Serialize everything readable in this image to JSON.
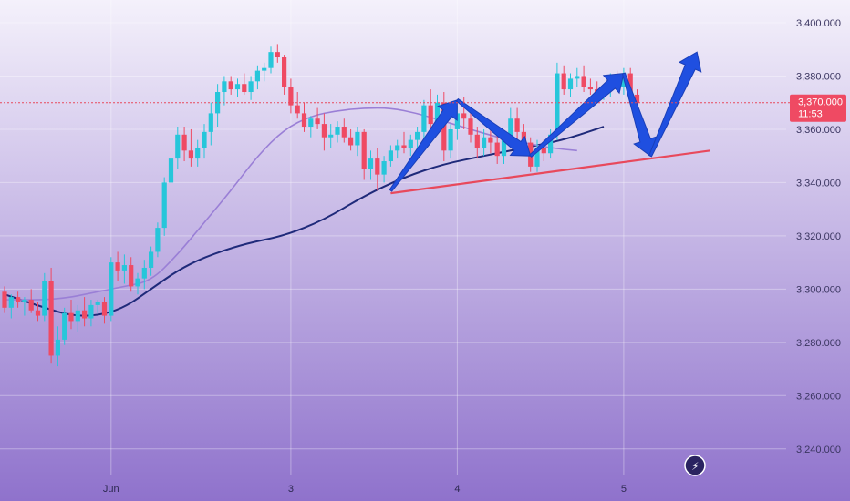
{
  "colors": {
    "bg_top": "#f4f1fb",
    "bg_bottom": "#8f72cc",
    "up": "#26c6da",
    "down": "#ef4a63",
    "ma_dark": "#1f2a7a",
    "ma_light": "#9a7fd6",
    "trendline": "#e8495c",
    "arrow": "#1f4fe0",
    "price_line": "#e8495c",
    "price_tag_bg": "#ef4a63"
  },
  "header": {
    "watermark_text": ""
  },
  "price_tag": {
    "price": "3,370.000",
    "countdown": "11:53"
  },
  "chart_data": {
    "type": "candlestick",
    "title": "",
    "xlabel": "",
    "ylabel": "",
    "ylim": [
      3230,
      3400
    ],
    "yticks": [
      3240,
      3260,
      3280,
      3300,
      3320,
      3340,
      3360,
      3380,
      3400
    ],
    "ytick_labels": [
      "3,240.000",
      "3,260.000",
      "3,280.000",
      "3,300.000",
      "3,320.000",
      "3,340.000",
      "3,360.000",
      "3,380.000",
      "3,400.000"
    ],
    "xticks": [
      {
        "label": "Jun",
        "index": 16
      },
      {
        "label": "3",
        "index": 43
      },
      {
        "label": "4",
        "index": 68
      },
      {
        "label": "5",
        "index": 93
      }
    ],
    "grid": true,
    "current_price": 3370,
    "candles": [
      [
        3299,
        3301,
        3291,
        3293
      ],
      [
        3293,
        3298,
        3289,
        3297
      ],
      [
        3297,
        3299,
        3293,
        3295
      ],
      [
        3295,
        3297,
        3290,
        3296
      ],
      [
        3296,
        3300,
        3291,
        3292
      ],
      [
        3292,
        3295,
        3288,
        3290
      ],
      [
        3290,
        3306,
        3288,
        3303
      ],
      [
        3303,
        3308,
        3272,
        3275
      ],
      [
        3275,
        3286,
        3271,
        3281
      ],
      [
        3281,
        3293,
        3279,
        3291
      ],
      [
        3291,
        3296,
        3285,
        3288
      ],
      [
        3288,
        3294,
        3284,
        3292
      ],
      [
        3292,
        3297,
        3286,
        3289
      ],
      [
        3289,
        3296,
        3286,
        3294
      ],
      [
        3294,
        3296,
        3291,
        3295
      ],
      [
        3295,
        3297,
        3287,
        3290
      ],
      [
        3290,
        3312,
        3288,
        3310
      ],
      [
        3310,
        3314,
        3303,
        3307
      ],
      [
        3307,
        3313,
        3302,
        3309
      ],
      [
        3309,
        3312,
        3299,
        3301
      ],
      [
        3301,
        3306,
        3298,
        3304
      ],
      [
        3304,
        3311,
        3300,
        3308
      ],
      [
        3308,
        3316,
        3305,
        3314
      ],
      [
        3314,
        3325,
        3312,
        3323
      ],
      [
        3323,
        3342,
        3320,
        3340
      ],
      [
        3340,
        3352,
        3334,
        3349
      ],
      [
        3349,
        3361,
        3345,
        3358
      ],
      [
        3358,
        3361,
        3348,
        3352
      ],
      [
        3352,
        3360,
        3346,
        3349
      ],
      [
        3349,
        3356,
        3346,
        3353
      ],
      [
        3353,
        3362,
        3349,
        3359
      ],
      [
        3359,
        3370,
        3354,
        3366
      ],
      [
        3366,
        3377,
        3361,
        3374
      ],
      [
        3374,
        3380,
        3369,
        3378
      ],
      [
        3378,
        3380,
        3373,
        3375
      ],
      [
        3375,
        3379,
        3372,
        3377
      ],
      [
        3377,
        3381,
        3373,
        3374
      ],
      [
        3374,
        3380,
        3371,
        3378
      ],
      [
        3378,
        3384,
        3375,
        3382
      ],
      [
        3382,
        3385,
        3378,
        3383
      ],
      [
        3383,
        3391,
        3381,
        3389
      ],
      [
        3389,
        3392,
        3385,
        3387
      ],
      [
        3387,
        3388,
        3373,
        3376
      ],
      [
        3376,
        3379,
        3366,
        3369
      ],
      [
        3369,
        3374,
        3364,
        3366
      ],
      [
        3366,
        3370,
        3359,
        3361
      ],
      [
        3361,
        3365,
        3357,
        3364
      ],
      [
        3364,
        3368,
        3360,
        3362
      ],
      [
        3362,
        3366,
        3352,
        3357
      ],
      [
        3357,
        3362,
        3353,
        3358
      ],
      [
        3358,
        3363,
        3355,
        3361
      ],
      [
        3361,
        3364,
        3355,
        3357
      ],
      [
        3357,
        3360,
        3352,
        3354
      ],
      [
        3354,
        3361,
        3350,
        3359
      ],
      [
        3359,
        3360,
        3341,
        3345
      ],
      [
        3345,
        3352,
        3341,
        3349
      ],
      [
        3349,
        3353,
        3337,
        3343
      ],
      [
        3343,
        3350,
        3340,
        3348
      ],
      [
        3348,
        3354,
        3346,
        3352
      ],
      [
        3352,
        3356,
        3349,
        3354
      ],
      [
        3354,
        3359,
        3351,
        3353
      ],
      [
        3353,
        3358,
        3350,
        3356
      ],
      [
        3356,
        3361,
        3352,
        3359
      ],
      [
        3359,
        3371,
        3356,
        3369
      ],
      [
        3369,
        3375,
        3359,
        3362
      ],
      [
        3362,
        3373,
        3358,
        3370
      ],
      [
        3370,
        3374,
        3348,
        3352
      ],
      [
        3352,
        3362,
        3349,
        3360
      ],
      [
        3360,
        3369,
        3356,
        3366
      ],
      [
        3366,
        3372,
        3360,
        3364
      ],
      [
        3364,
        3366,
        3355,
        3358
      ],
      [
        3358,
        3361,
        3349,
        3353
      ],
      [
        3353,
        3360,
        3350,
        3357
      ],
      [
        3357,
        3362,
        3351,
        3355
      ],
      [
        3355,
        3359,
        3347,
        3350
      ],
      [
        3350,
        3358,
        3347,
        3356
      ],
      [
        3356,
        3368,
        3353,
        3364
      ],
      [
        3364,
        3368,
        3356,
        3359
      ],
      [
        3359,
        3362,
        3352,
        3355
      ],
      [
        3355,
        3357,
        3344,
        3346
      ],
      [
        3346,
        3356,
        3344,
        3353
      ],
      [
        3353,
        3356,
        3348,
        3351
      ],
      [
        3351,
        3360,
        3349,
        3358
      ],
      [
        3358,
        3385,
        3356,
        3381
      ],
      [
        3381,
        3384,
        3373,
        3375
      ],
      [
        3375,
        3381,
        3372,
        3379
      ],
      [
        3379,
        3383,
        3376,
        3380
      ],
      [
        3380,
        3384,
        3374,
        3376
      ],
      [
        3376,
        3379,
        3373,
        3375
      ],
      [
        3375,
        3378,
        3372,
        3374
      ],
      [
        3374,
        3377,
        3371,
        3375
      ],
      [
        3375,
        3381,
        3372,
        3379
      ],
      [
        3379,
        3382,
        3374,
        3376
      ],
      [
        3376,
        3383,
        3373,
        3381
      ],
      [
        3381,
        3383,
        3371,
        3373
      ],
      [
        3373,
        3375,
        3368,
        3370
      ]
    ],
    "series": [
      {
        "name": "",
        "color_key": "ma_dark",
        "points": [
          [
            0,
            3298
          ],
          [
            6,
            3293
          ],
          [
            10,
            3290
          ],
          [
            14,
            3290
          ],
          [
            18,
            3293
          ],
          [
            22,
            3300
          ],
          [
            26,
            3307
          ],
          [
            30,
            3312
          ],
          [
            36,
            3317
          ],
          [
            42,
            3320
          ],
          [
            48,
            3326
          ],
          [
            54,
            3335
          ],
          [
            60,
            3342
          ],
          [
            66,
            3347
          ],
          [
            72,
            3350
          ],
          [
            78,
            3353
          ],
          [
            84,
            3356
          ],
          [
            90,
            3361
          ]
        ]
      },
      {
        "name": "",
        "color_key": "ma_light",
        "points": [
          [
            0,
            3296
          ],
          [
            8,
            3296
          ],
          [
            14,
            3299
          ],
          [
            18,
            3301
          ],
          [
            22,
            3303
          ],
          [
            26,
            3313
          ],
          [
            30,
            3325
          ],
          [
            34,
            3337
          ],
          [
            38,
            3350
          ],
          [
            42,
            3360
          ],
          [
            46,
            3365
          ],
          [
            50,
            3367
          ],
          [
            54,
            3368
          ],
          [
            58,
            3368
          ],
          [
            62,
            3366
          ],
          [
            66,
            3363
          ],
          [
            70,
            3360
          ],
          [
            74,
            3357
          ],
          [
            78,
            3355
          ],
          [
            82,
            3353
          ],
          [
            86,
            3352
          ]
        ]
      }
    ],
    "trendline": {
      "from": [
        58,
        3336
      ],
      "to": [
        106,
        3352
      ]
    },
    "projection_arrows": [
      {
        "points": [
          [
            58,
            3337
          ],
          [
            68,
            3371
          ]
        ]
      },
      {
        "points": [
          [
            68,
            3371
          ],
          [
            79,
            3350
          ]
        ]
      },
      {
        "points": [
          [
            79,
            3350
          ],
          [
            93,
            3381
          ]
        ]
      },
      {
        "points": [
          [
            93,
            3381
          ],
          [
            97,
            3350
          ]
        ]
      },
      {
        "points": [
          [
            97,
            3350
          ],
          [
            104,
            3389
          ]
        ]
      }
    ]
  }
}
